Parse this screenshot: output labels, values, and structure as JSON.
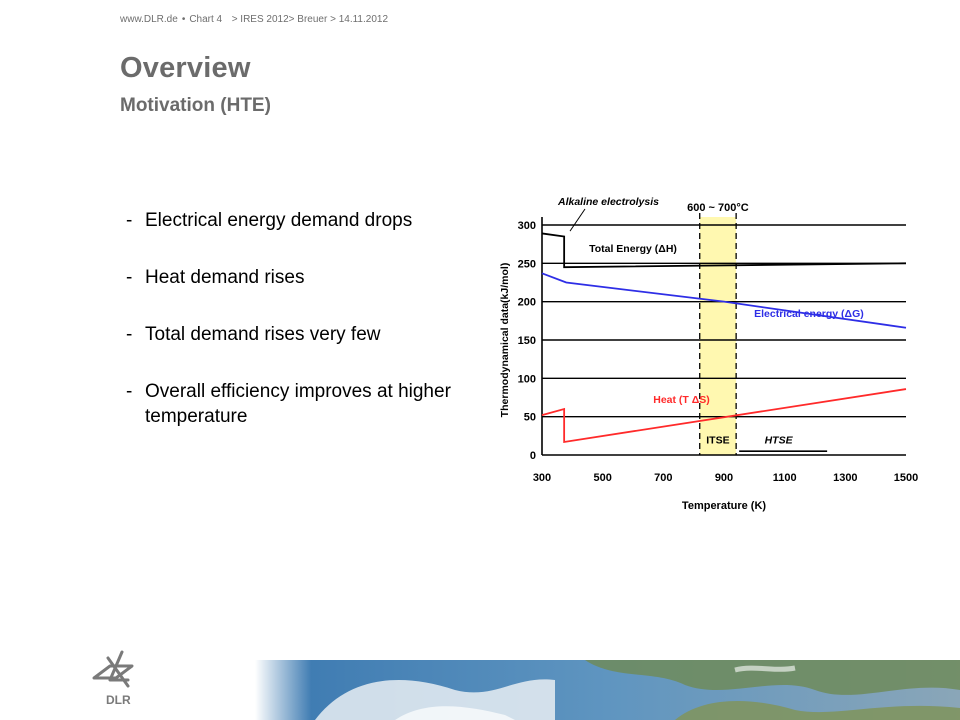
{
  "header": {
    "site": "www.DLR.de",
    "sep": "•",
    "chart": "Chart 4",
    "path": "> IRES 2012> Breuer > 14.11.2012"
  },
  "title": "Overview",
  "subtitle": "Motivation (HTE)",
  "bullets": [
    {
      "dash": "-",
      "text": "Electrical energy demand drops"
    },
    {
      "dash": "-",
      "text": "Heat demand rises"
    },
    {
      "dash": "-",
      "text": "Total demand rises very few"
    },
    {
      "dash": "-",
      "text": "Overall efficiency improves at higher temperature"
    }
  ],
  "logo": {
    "text": "DLR"
  },
  "colors": {
    "title": "#6b6b6b",
    "total": "#000000",
    "electrical": "#2e2ee6",
    "heat": "#ff2a2a",
    "band": "#fff8b0"
  },
  "chart_data": {
    "type": "line",
    "xlabel": "Temperature (K)",
    "ylabel": "Thermodynamical data(kJ/mol)",
    "xlim": [
      300,
      1500
    ],
    "ylim": [
      0,
      300
    ],
    "xticks": [
      300,
      500,
      700,
      900,
      1100,
      1300,
      1500
    ],
    "yticks": [
      0,
      50,
      100,
      150,
      200,
      250,
      300
    ],
    "grid": "horizontal",
    "band": {
      "x": [
        820,
        940
      ],
      "label": "600 ~ 700°C"
    },
    "series": [
      {
        "name": "Total Energy (ΔH)",
        "color": "#000000",
        "x": [
          300,
          373,
          373,
          1500
        ],
        "y": [
          289,
          285,
          245,
          250
        ]
      },
      {
        "name": "Electrical energy (ΔG)",
        "color": "#2e2ee6",
        "x": [
          300,
          380,
          900,
          1500
        ],
        "y": [
          237,
          225,
          200,
          166
        ]
      },
      {
        "name": "Heat (T ΔS)",
        "color": "#ff2a2a",
        "x": [
          300,
          373,
          373,
          1500
        ],
        "y": [
          52,
          60,
          17,
          86
        ]
      }
    ],
    "annotations": [
      {
        "text": "Alkaline electrolysis",
        "x": 520,
        "y": 330
      },
      {
        "text": "ITSE",
        "x": 880,
        "y": 15
      },
      {
        "text": "HTSE",
        "x": 1080,
        "y": 15
      }
    ]
  }
}
